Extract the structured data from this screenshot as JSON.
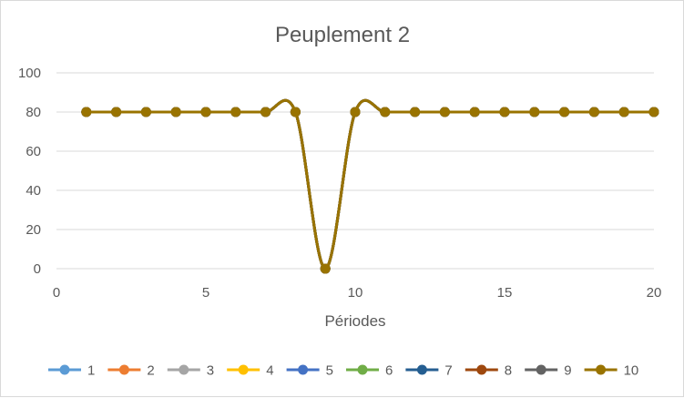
{
  "chart_data": {
    "type": "line",
    "title": "Peuplement 2",
    "xlabel": "Périodes",
    "ylabel": "",
    "xlim": [
      0,
      20
    ],
    "ylim": [
      0,
      100
    ],
    "xticks": [
      0,
      5,
      10,
      15,
      20
    ],
    "yticks": [
      0,
      20,
      40,
      60,
      80,
      100
    ],
    "grid": "horizontal",
    "smooth": true,
    "legend_position": "bottom",
    "x": [
      1,
      2,
      3,
      4,
      5,
      6,
      7,
      8,
      9,
      10,
      11,
      12,
      13,
      14,
      15,
      16,
      17,
      18,
      19,
      20
    ],
    "series": [
      {
        "name": "1",
        "color": "#5b9bd5",
        "values": [
          80,
          80,
          80,
          80,
          80,
          80,
          80,
          80,
          0,
          80,
          80,
          80,
          80,
          80,
          80,
          80,
          80,
          80,
          80,
          80
        ]
      },
      {
        "name": "2",
        "color": "#ed7d31",
        "values": [
          80,
          80,
          80,
          80,
          80,
          80,
          80,
          80,
          0,
          80,
          80,
          80,
          80,
          80,
          80,
          80,
          80,
          80,
          80,
          80
        ]
      },
      {
        "name": "3",
        "color": "#a5a5a5",
        "values": [
          80,
          80,
          80,
          80,
          80,
          80,
          80,
          80,
          0,
          80,
          80,
          80,
          80,
          80,
          80,
          80,
          80,
          80,
          80,
          80
        ]
      },
      {
        "name": "4",
        "color": "#ffc000",
        "values": [
          80,
          80,
          80,
          80,
          80,
          80,
          80,
          80,
          0,
          80,
          80,
          80,
          80,
          80,
          80,
          80,
          80,
          80,
          80,
          80
        ]
      },
      {
        "name": "5",
        "color": "#4472c4",
        "values": [
          80,
          80,
          80,
          80,
          80,
          80,
          80,
          80,
          0,
          80,
          80,
          80,
          80,
          80,
          80,
          80,
          80,
          80,
          80,
          80
        ]
      },
      {
        "name": "6",
        "color": "#70ad47",
        "values": [
          80,
          80,
          80,
          80,
          80,
          80,
          80,
          80,
          0,
          80,
          80,
          80,
          80,
          80,
          80,
          80,
          80,
          80,
          80,
          80
        ]
      },
      {
        "name": "7",
        "color": "#255e91",
        "values": [
          80,
          80,
          80,
          80,
          80,
          80,
          80,
          80,
          0,
          80,
          80,
          80,
          80,
          80,
          80,
          80,
          80,
          80,
          80,
          80
        ]
      },
      {
        "name": "8",
        "color": "#9e480e",
        "values": [
          80,
          80,
          80,
          80,
          80,
          80,
          80,
          80,
          0,
          80,
          80,
          80,
          80,
          80,
          80,
          80,
          80,
          80,
          80,
          80
        ]
      },
      {
        "name": "9",
        "color": "#636363",
        "values": [
          80,
          80,
          80,
          80,
          80,
          80,
          80,
          80,
          0,
          80,
          80,
          80,
          80,
          80,
          80,
          80,
          80,
          80,
          80,
          80
        ]
      },
      {
        "name": "10",
        "color": "#997300",
        "values": [
          80,
          80,
          80,
          80,
          80,
          80,
          80,
          80,
          0,
          80,
          80,
          80,
          80,
          80,
          80,
          80,
          80,
          80,
          80,
          80
        ]
      }
    ]
  }
}
